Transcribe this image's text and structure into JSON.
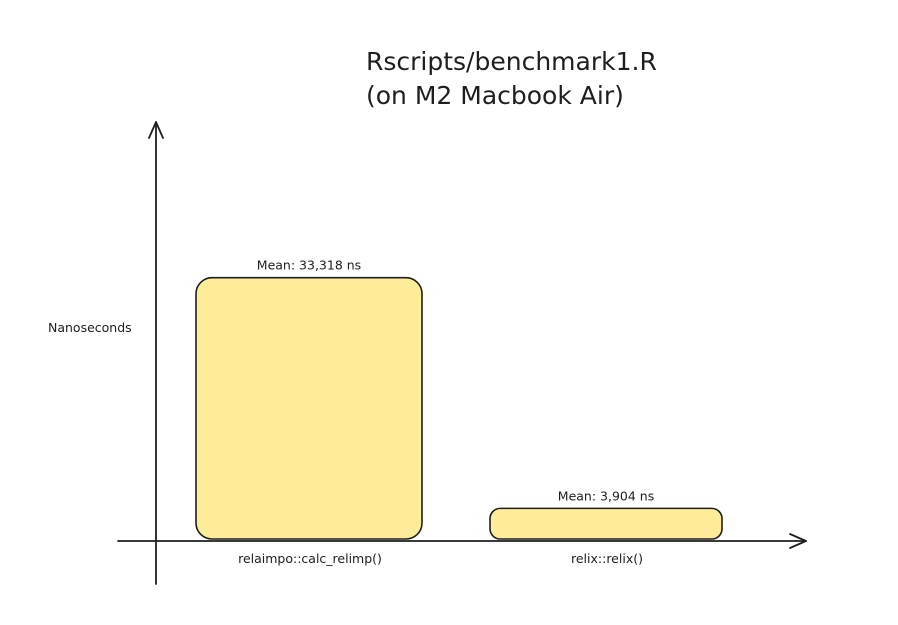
{
  "chart_data": {
    "type": "bar",
    "title": "Rscripts/benchmark1.R",
    "subtitle": "(on M2 Macbook Air)",
    "ylabel": "Nanoseconds",
    "xlabel": "",
    "categories": [
      "relaimpo::calc_relimp()",
      "relix::relix()"
    ],
    "values": [
      33318,
      3904
    ],
    "data_labels": [
      "Mean: 33,318 ns",
      "Mean: 3,904 ns"
    ],
    "ylim": [
      0,
      38000
    ],
    "grid": false,
    "bar_color": "#ffec99",
    "stroke_color": "#1e1e1e"
  }
}
